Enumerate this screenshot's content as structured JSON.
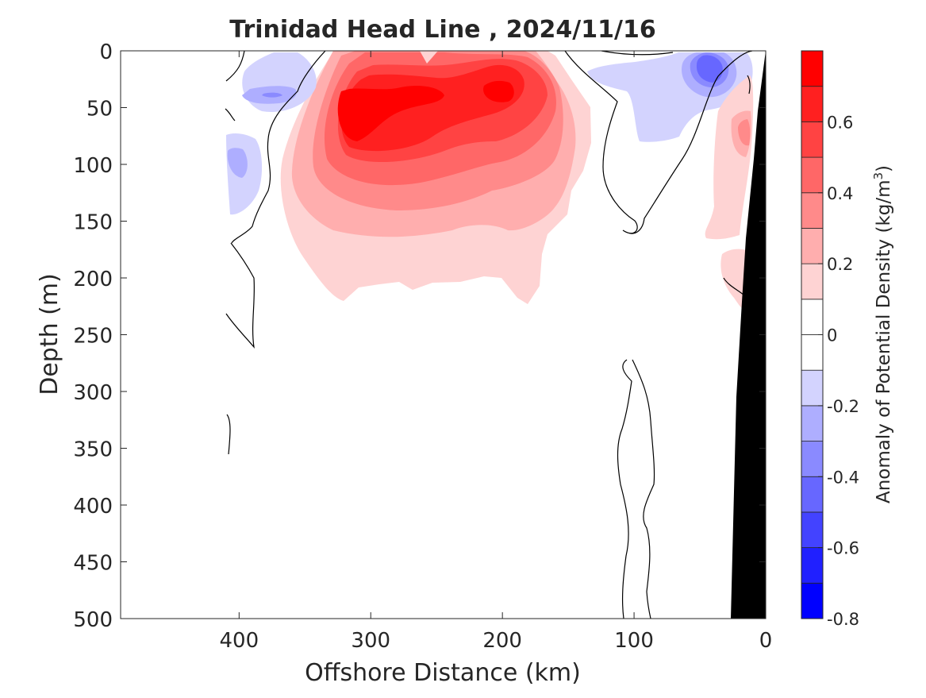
{
  "chart_data": {
    "type": "contour",
    "title": "Trinidad Head Line , 2024/11/16",
    "xlabel": "Offshore Distance (km)",
    "ylabel": "Depth (m)",
    "xlim": [
      490,
      0
    ],
    "ylim": [
      0,
      500
    ],
    "x_reversed": true,
    "y_reversed": true,
    "xticks": [
      400,
      300,
      200,
      100,
      0
    ],
    "xtick_labels": [
      "400",
      "300",
      "200",
      "100",
      "0"
    ],
    "yticks": [
      0,
      50,
      100,
      150,
      200,
      250,
      300,
      350,
      400,
      450,
      500
    ],
    "ytick_labels": [
      "0",
      "50",
      "100",
      "150",
      "200",
      "250",
      "300",
      "350",
      "400",
      "450",
      "500"
    ],
    "colorbar": {
      "label_prefix": "Anomaly of Potential Density (kg/m",
      "label_exponent": "3",
      "label_suffix": ")",
      "range": [
        -0.8,
        0.8
      ],
      "step": 0.1,
      "ticks": [
        -0.8,
        -0.6,
        -0.4,
        -0.2,
        0,
        0.2,
        0.4,
        0.6
      ],
      "tick_labels": [
        "-0.8",
        "-0.6",
        "-0.4",
        "-0.2",
        "0",
        "0.2",
        "0.4",
        "0.6"
      ],
      "levels": [
        {
          "lo": -0.8,
          "hi": -0.7,
          "color": "#0000ff"
        },
        {
          "lo": -0.7,
          "hi": -0.6,
          "color": "#2020ff"
        },
        {
          "lo": -0.6,
          "hi": -0.5,
          "color": "#4343ff"
        },
        {
          "lo": -0.5,
          "hi": -0.4,
          "color": "#6767ff"
        },
        {
          "lo": -0.4,
          "hi": -0.3,
          "color": "#8a8aff"
        },
        {
          "lo": -0.3,
          "hi": -0.2,
          "color": "#aeaeff"
        },
        {
          "lo": -0.2,
          "hi": -0.1,
          "color": "#d3d3fe"
        },
        {
          "lo": -0.1,
          "hi": 0.0,
          "color": "#ffffff"
        },
        {
          "lo": 0.0,
          "hi": 0.1,
          "color": "#ffffff"
        },
        {
          "lo": 0.1,
          "hi": 0.2,
          "color": "#fed3d3"
        },
        {
          "lo": 0.2,
          "hi": 0.3,
          "color": "#ffaeae"
        },
        {
          "lo": 0.3,
          "hi": 0.4,
          "color": "#ff8a8a"
        },
        {
          "lo": 0.4,
          "hi": 0.5,
          "color": "#ff6767"
        },
        {
          "lo": 0.5,
          "hi": 0.6,
          "color": "#ff4343"
        },
        {
          "lo": 0.6,
          "hi": 0.7,
          "color": "#ff2020"
        },
        {
          "lo": 0.7,
          "hi": 0.8,
          "color": "#ff0000"
        }
      ]
    },
    "features": [
      {
        "name": "positive-anomaly-core",
        "x": [
          350,
          140
        ],
        "depth": [
          0,
          225
        ],
        "peak_value": 0.75,
        "peak_at": [
          300,
          60
        ]
      },
      {
        "name": "positive-anomaly-secondary-core",
        "peak_value": 0.75,
        "peak_at": [
          205,
          38
        ]
      },
      {
        "name": "negative-anomaly-offshore",
        "x": [
          410,
          350
        ],
        "depth": [
          0,
          145
        ],
        "peak_value": -0.35
      },
      {
        "name": "negative-anomaly-nearshore",
        "x": [
          130,
          10
        ],
        "depth": [
          0,
          80
        ],
        "peak_value": -0.45,
        "peak_at": [
          40,
          15
        ]
      },
      {
        "name": "positive-anomaly-coastal",
        "x": [
          40,
          0
        ],
        "depth": [
          30,
          230
        ],
        "peak_value": 0.35
      },
      {
        "name": "shelf-bathymetry",
        "bottom_at_500m_km": 26,
        "color": "#000000"
      }
    ],
    "zero_contours": "black lines marking the 0 anomaly isoline"
  }
}
